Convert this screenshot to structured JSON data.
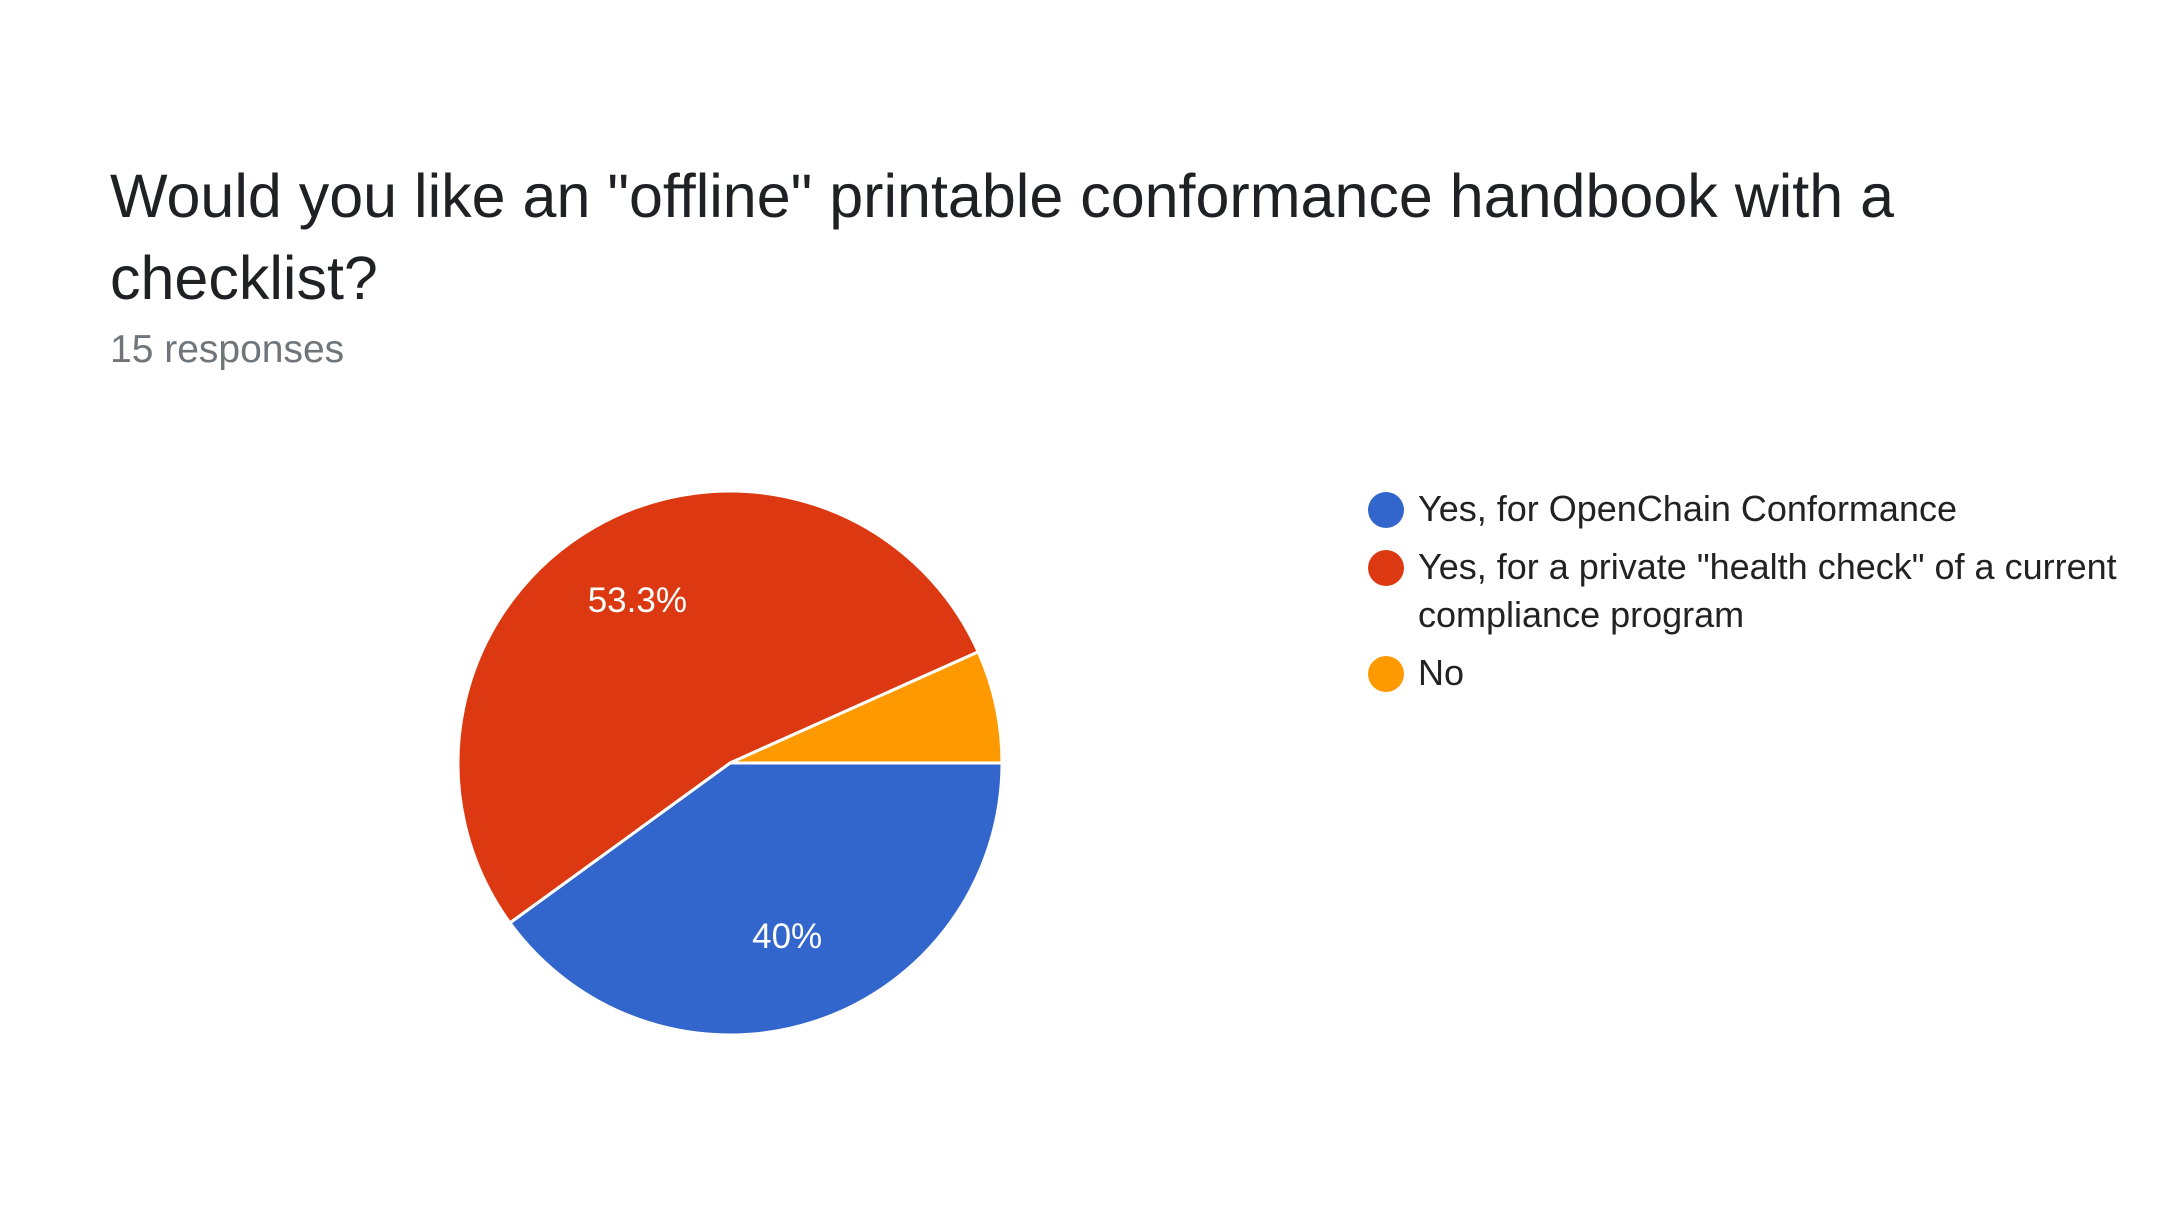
{
  "header": {
    "title": "Would you like an \"offline\" printable conformance handbook with a checklist?",
    "responses": "15 responses"
  },
  "colors": {
    "blue": "#3366cc",
    "red": "#dc3912",
    "orange": "#ff9900"
  },
  "chart_data": {
    "type": "pie",
    "title": "Would you like an \"offline\" printable conformance handbook with a checklist?",
    "legend_position": "right",
    "slices": [
      {
        "label": "Yes, for OpenChain Conformance",
        "value": 40,
        "display": "40%",
        "color": "#3366cc"
      },
      {
        "label": "Yes, for a private \"health check\" of a current compliance program",
        "value": 53.3,
        "display": "53.3%",
        "color": "#dc3912"
      },
      {
        "label": "No",
        "value": 6.7,
        "display": "",
        "color": "#ff9900"
      }
    ]
  }
}
